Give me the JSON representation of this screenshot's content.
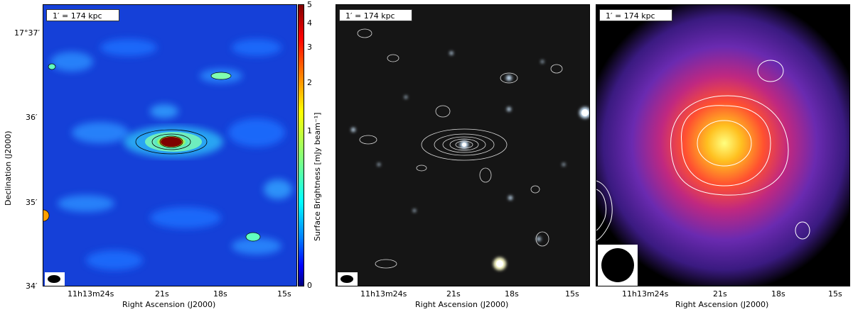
{
  "panels": [
    {
      "scale_label": "1′ = 174 kpc"
    },
    {
      "scale_label": "1′ = 174 kpc"
    },
    {
      "scale_label": "1′ = 174 kpc"
    }
  ],
  "axes": {
    "xlabel": "Right Ascension (J2000)",
    "ylabel": "Declination (J2000)",
    "x_ticks": [
      "11h13m24s",
      "21s",
      "18s",
      "15s"
    ],
    "y_ticks": [
      "17°37′",
      "36′",
      "35′",
      "34′"
    ]
  },
  "colorbar": {
    "label": "Surface Brightness [mJy beam⁻¹]",
    "ticks": [
      "5",
      "4",
      "3",
      "2",
      "1",
      "0"
    ]
  }
}
